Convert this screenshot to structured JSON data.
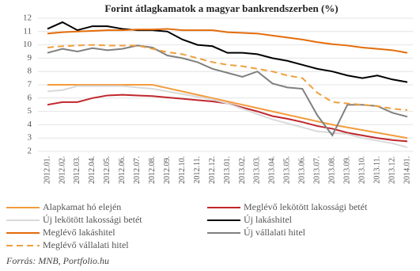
{
  "chart_data": {
    "type": "line",
    "title": "Forint átlagkamatok a magyar bankrendszerben (%)",
    "source": "Forrás: MNB, Portfolio.hu",
    "categories": [
      "2012.01.",
      "2012.02.",
      "2012.03.",
      "2012.04.",
      "2012.05.",
      "2012.06.",
      "2012.07.",
      "2012.08.",
      "2012.09.",
      "2012.10.",
      "2012.11.",
      "2012.12.",
      "2013.01.",
      "2013.02.",
      "2013.03.",
      "2013.04.",
      "2013.05.",
      "2013.06.",
      "2013.07.",
      "2013.08.",
      "2013.09.",
      "2013.10.",
      "2013.11.",
      "2013.12.",
      "2014.01."
    ],
    "ylim": [
      2,
      12
    ],
    "yticks": [
      2,
      3,
      4,
      5,
      6,
      7,
      8,
      9,
      10,
      11,
      12
    ],
    "grid": true,
    "series": [
      {
        "name": "Alapkamat hó elején",
        "color": "#f39c3c",
        "dashed": false,
        "values": [
          7,
          7,
          7,
          7,
          7,
          7,
          7,
          7,
          6.75,
          6.5,
          6.25,
          6,
          5.75,
          5.5,
          5.25,
          5,
          4.75,
          4.5,
          4.25,
          4,
          3.8,
          3.6,
          3.4,
          3.2,
          3
        ]
      },
      {
        "name": "Meglévő lekötött lakossági betét",
        "color": "#c0272d",
        "dashed": false,
        "values": [
          5.5,
          5.7,
          5.7,
          6,
          6.2,
          6.25,
          6.2,
          6.15,
          6.05,
          5.95,
          5.85,
          5.75,
          5.6,
          5.3,
          5,
          4.65,
          4.45,
          4.2,
          3.9,
          3.7,
          3.4,
          3.2,
          3,
          2.85,
          2.75
        ]
      },
      {
        "name": "Új lekötött lakossági betét",
        "color": "#d9d9d9",
        "dashed": false,
        "values": [
          6.5,
          6.6,
          6.9,
          6.9,
          6.9,
          6.9,
          6.8,
          6.7,
          6.5,
          6.3,
          6.1,
          5.9,
          5.6,
          5.2,
          4.8,
          4.4,
          4.1,
          3.8,
          3.5,
          3.4,
          3.3,
          3,
          2.8,
          2.6,
          2.3
        ]
      },
      {
        "name": "Új lakáshitel",
        "color": "#000000",
        "dashed": false,
        "values": [
          11.2,
          11.7,
          11.1,
          11.4,
          11.4,
          11.2,
          11.1,
          11.1,
          11,
          10.4,
          10,
          9.9,
          9.4,
          9.4,
          9.3,
          9,
          8.8,
          8.5,
          8.2,
          8,
          7.7,
          7.5,
          7.7,
          7.4,
          7.2
        ]
      },
      {
        "name": "Meglévő lakáshitel",
        "color": "#e46c0a",
        "dashed": false,
        "values": [
          10.85,
          10.95,
          11,
          11.05,
          11.1,
          11.1,
          11.15,
          11.15,
          11.2,
          11.1,
          11.1,
          11.1,
          10.95,
          10.9,
          10.85,
          10.7,
          10.55,
          10.4,
          10.2,
          10.05,
          9.95,
          9.8,
          9.7,
          9.6,
          9.4
        ]
      },
      {
        "name": "Új vállalati hitel",
        "color": "#808080",
        "dashed": false,
        "values": [
          9.4,
          9.7,
          9.5,
          9.75,
          9.6,
          9.7,
          9.95,
          9.8,
          9.2,
          9,
          8.7,
          8.2,
          7.9,
          7.6,
          8,
          7.1,
          6.8,
          6.7,
          4.7,
          3.2,
          5.5,
          5.5,
          5.4,
          4.9,
          4.6
        ]
      },
      {
        "name": "Meglévő vállalati hitel",
        "color": "#f0a040",
        "dashed": true,
        "values": [
          9.8,
          9.9,
          9.95,
          10,
          9.95,
          9.95,
          9.95,
          9.7,
          9.45,
          9.3,
          9,
          8.7,
          8.5,
          8.4,
          8.2,
          8,
          7.7,
          7.5,
          6.4,
          5.7,
          5.6,
          5.5,
          5.4,
          5.2,
          5.1
        ]
      }
    ]
  }
}
